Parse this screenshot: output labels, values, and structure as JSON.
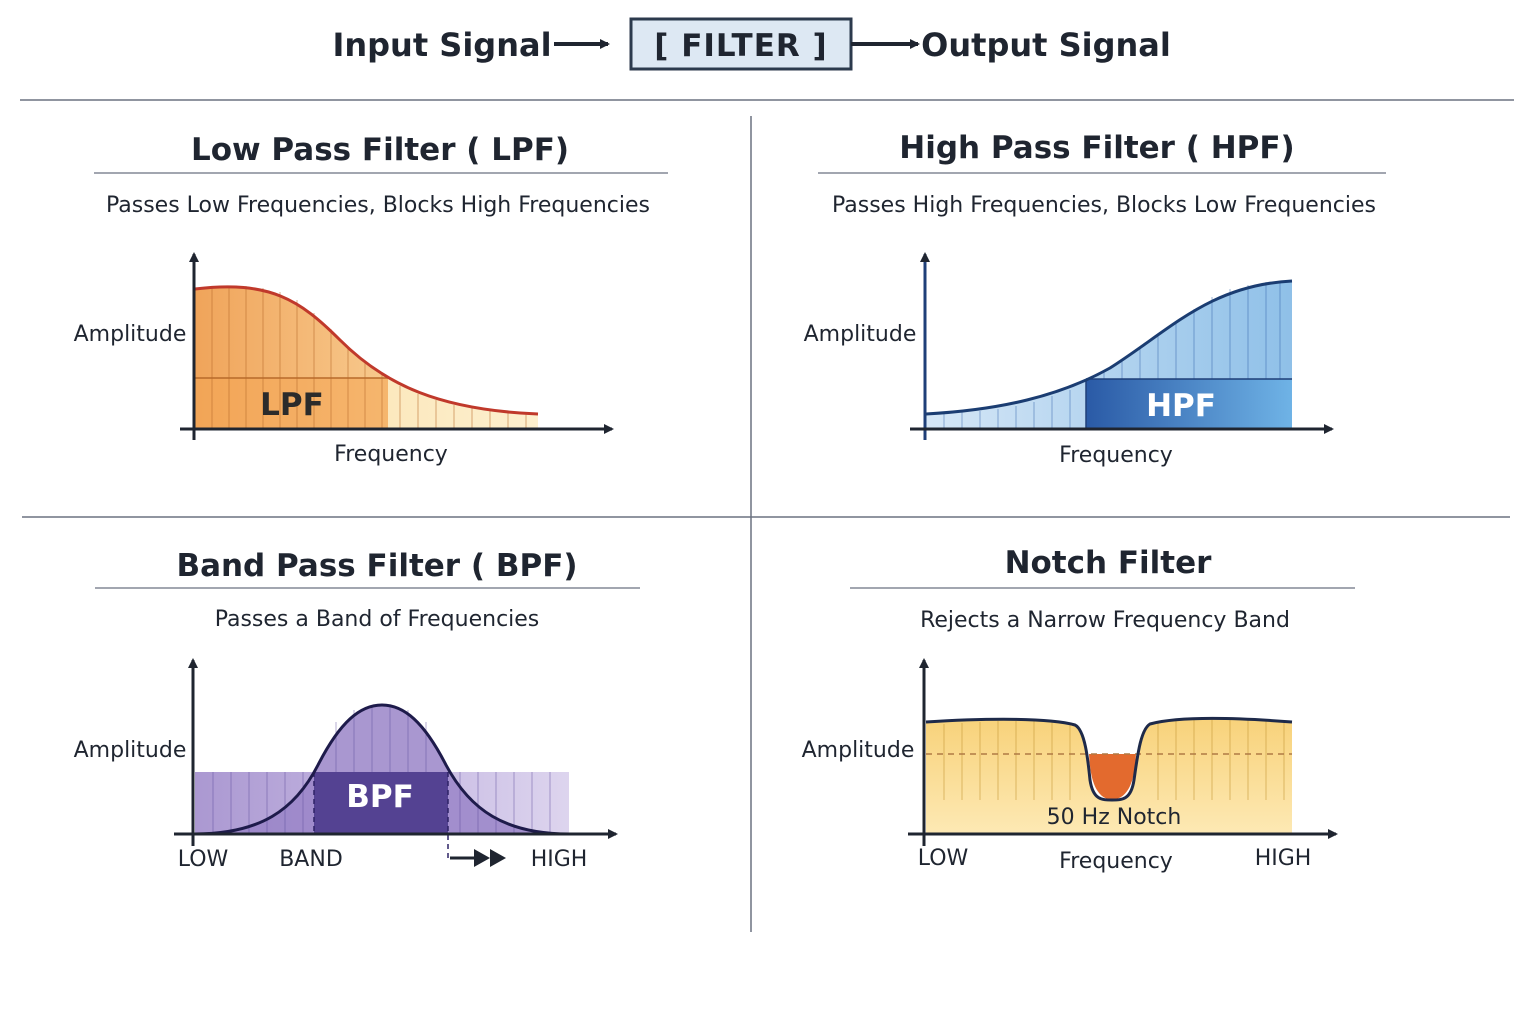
{
  "flow": {
    "input_label": "Input Signal",
    "filter_label": "[ FILTER ]",
    "output_label": "Output Signal"
  },
  "colors": {
    "ink": "#1f2530",
    "lpf_fill": "#f2b36b",
    "lpf_curve": "#c0392b",
    "hpf_fill": "#7eb2de",
    "hpf_band": "#2a5aa6",
    "bpf_fill": "#8e78bd",
    "bpf_band": "#4b3a8c",
    "notch_fill": "#fbe4a2",
    "notch_dip": "#e36a2e",
    "filter_box": "#dde8f3"
  },
  "quadrants": {
    "lpf": {
      "title": "Low Pass Filter ( LPF)",
      "subtitle": "Passes Low Frequencies, Blocks High Frequencies",
      "ylabel": "Amplitude",
      "xlabel": "Frequency",
      "band_label": "LPF"
    },
    "hpf": {
      "title": "High Pass Filter ( HPF)",
      "subtitle": "Passes High Frequencies, Blocks Low Frequencies",
      "ylabel": "Amplitude",
      "xlabel": "Frequency",
      "band_label": "HPF"
    },
    "bpf": {
      "title": "Band Pass Filter ( BPF)",
      "subtitle": "Passes a Band of Frequencies",
      "ylabel": "Amplitude",
      "band_label": "BPF",
      "x_low": "LOW",
      "x_band": "BAND",
      "x_high": "HIGH"
    },
    "notch": {
      "title": "Notch Filter",
      "subtitle": "Rejects a Narrow Frequency Band",
      "ylabel": "Amplitude",
      "xlabel": "Frequency",
      "notch_label": "50 Hz Notch",
      "x_low": "LOW",
      "x_high": "HIGH"
    }
  }
}
